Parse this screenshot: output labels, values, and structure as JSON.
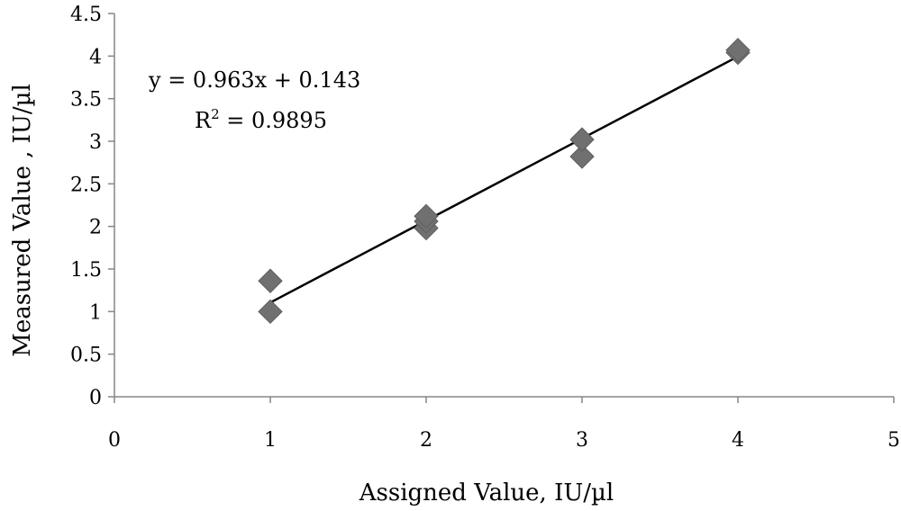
{
  "chart_data": {
    "type": "scatter",
    "title": "",
    "xlabel": "Assigned Value, IU/µl",
    "ylabel": "Measured Value , IU/µl",
    "xlim": [
      0,
      5
    ],
    "ylim": [
      0,
      4.5
    ],
    "x_ticks": [
      "0",
      "1",
      "2",
      "3",
      "4",
      "5"
    ],
    "y_ticks": [
      "0",
      "0.5",
      "1",
      "1.5",
      "2",
      "2.5",
      "3",
      "3.5",
      "4",
      "4.5"
    ],
    "grid": false,
    "legend": "none",
    "series": [
      {
        "marker": "diamond",
        "color": "#707070",
        "points": [
          {
            "x": 1,
            "y": 1.0
          },
          {
            "x": 1,
            "y": 1.36
          },
          {
            "x": 2,
            "y": 1.98
          },
          {
            "x": 2,
            "y": 2.06
          },
          {
            "x": 2,
            "y": 2.12
          },
          {
            "x": 3,
            "y": 2.82
          },
          {
            "x": 3,
            "y": 3.02
          },
          {
            "x": 4,
            "y": 4.04
          },
          {
            "x": 4,
            "y": 4.07
          }
        ]
      }
    ],
    "trendline": {
      "color": "#000000",
      "slope": 0.963,
      "intercept": 0.143,
      "x_range": [
        1,
        4
      ],
      "equation_text": "y = 0.963x + 0.143",
      "r2_prefix": "R",
      "r2_sup": "2",
      "r2_value_text": " = 0.9895"
    }
  }
}
